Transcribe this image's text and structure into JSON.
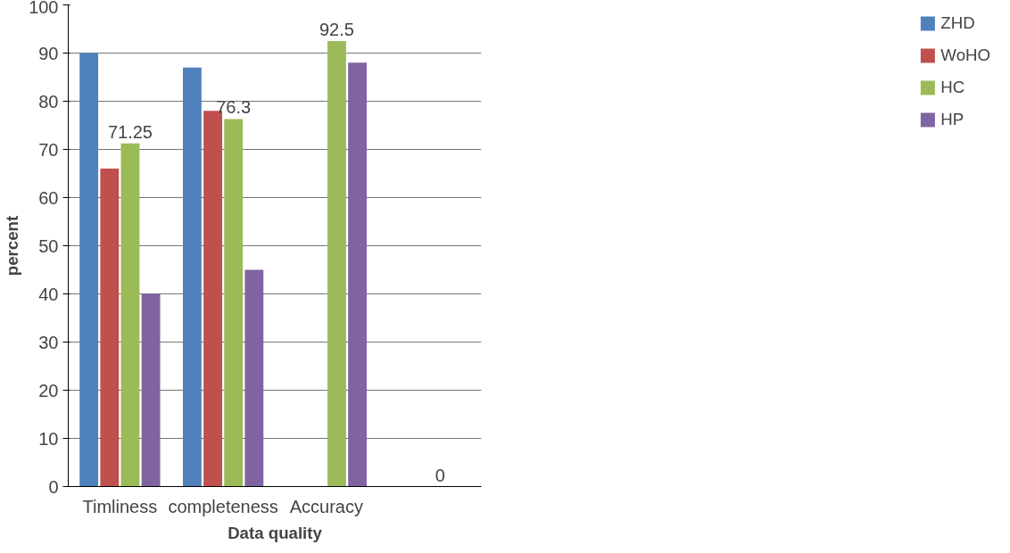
{
  "chart_data": {
    "type": "bar",
    "xlabel": "Data quality",
    "ylabel": "percent",
    "categories": [
      "Timliness",
      "completeness",
      "Accuracy",
      null
    ],
    "series": [
      {
        "name": "ZHD",
        "color": "#4f81bd",
        "values": [
          90,
          87,
          0,
          0
        ]
      },
      {
        "name": "WoHO",
        "color": "#c0504d",
        "values": [
          66,
          78,
          0,
          0
        ]
      },
      {
        "name": "HC",
        "color": "#9bbb59",
        "values": [
          71.25,
          76.3,
          92.5,
          0
        ],
        "value_labels": [
          "71.25",
          "76.3",
          "92.5",
          "0"
        ]
      },
      {
        "name": "HP",
        "color": "#8064a2",
        "values": [
          40,
          45,
          88,
          null
        ]
      }
    ],
    "ylim": [
      0,
      100
    ],
    "yticks": [
      0,
      10,
      20,
      30,
      40,
      50,
      60,
      70,
      80,
      90,
      100
    ],
    "grid": "y",
    "legend": "right"
  }
}
